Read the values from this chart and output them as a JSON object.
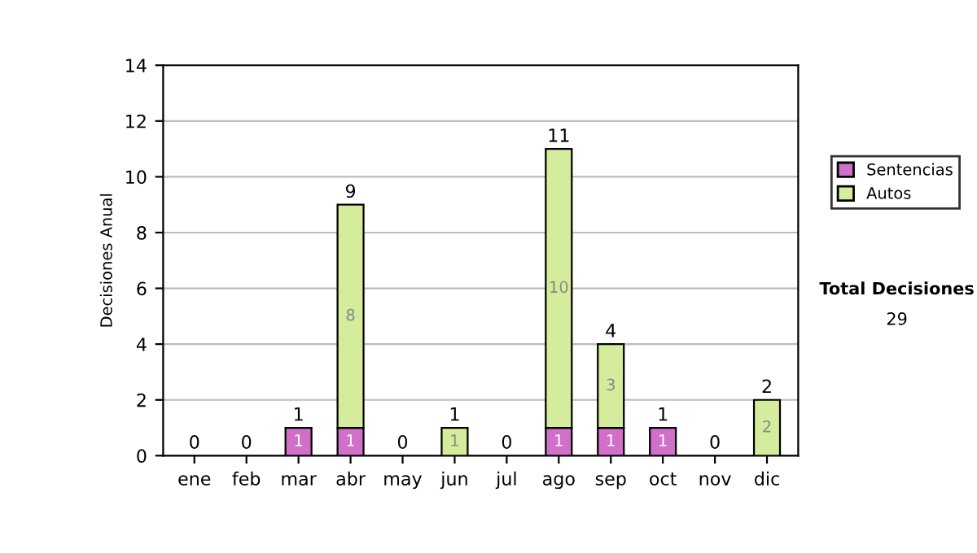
{
  "chart_data": {
    "type": "bar",
    "ylabel": "Decisiones Anual",
    "categories": [
      "ene",
      "feb",
      "mar",
      "abr",
      "may",
      "jun",
      "jul",
      "ago",
      "sep",
      "oct",
      "nov",
      "dic"
    ],
    "stacked": true,
    "series": [
      {
        "name": "Sentencias",
        "color": "#d070c8",
        "values": [
          0,
          0,
          1,
          1,
          0,
          0,
          0,
          1,
          1,
          1,
          0,
          0
        ],
        "value_labels": [
          null,
          null,
          "1",
          "1",
          null,
          null,
          null,
          "1",
          "1",
          "1",
          null,
          null
        ]
      },
      {
        "name": "Autos",
        "color": "#d4ec9c",
        "values": [
          0,
          0,
          0,
          8,
          0,
          1,
          0,
          10,
          3,
          0,
          0,
          2
        ],
        "value_labels": [
          null,
          null,
          null,
          "8",
          null,
          "1",
          null,
          "10",
          "3",
          null,
          null,
          "2"
        ]
      }
    ],
    "totals": [
      "0",
      "0",
      "1",
      "9",
      "0",
      "1",
      "0",
      "11",
      "4",
      "1",
      "0",
      "2"
    ],
    "ylim": [
      0,
      14
    ],
    "yticks": [
      0,
      2,
      4,
      6,
      8,
      10,
      12,
      14
    ],
    "grid": "y",
    "legend": "right",
    "annotations": [
      "Total Decisiones",
      "29"
    ]
  }
}
